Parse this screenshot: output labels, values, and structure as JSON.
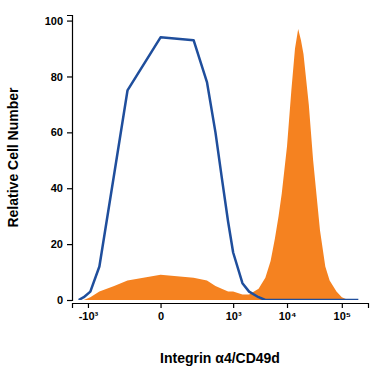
{
  "chart_data": {
    "type": "line",
    "x_label": "Integrin α4/CD49d",
    "y_label": "Relative Cell Number",
    "log": "x",
    "x": [
      -1500,
      -1200,
      -900,
      -600,
      -300,
      -150,
      0,
      150,
      300,
      450,
      600,
      800,
      1000,
      1500,
      2000,
      3000,
      4000,
      5000,
      6000,
      7000,
      8000,
      10000,
      12000,
      14000,
      16000,
      18000,
      20000,
      25000,
      30000,
      40000,
      50000,
      60000,
      80000,
      100000,
      130000,
      200000
    ],
    "series": [
      {
        "type": "area",
        "color": "#f58220",
        "values": [
          0,
          0,
          1,
          3,
          5,
          7,
          9,
          8,
          7,
          5,
          4,
          3,
          3,
          2,
          2,
          4,
          8,
          14,
          22,
          30,
          38,
          55,
          75,
          90,
          97,
          93,
          88,
          70,
          50,
          25,
          12,
          7,
          3,
          1,
          0,
          0
        ]
      },
      {
        "type": "line",
        "color": "#1f4e9c",
        "values": [
          0,
          1,
          3,
          12,
          45,
          75,
          94,
          93,
          78,
          60,
          44,
          28,
          17,
          6,
          3,
          1,
          0,
          0,
          0,
          0,
          0,
          0,
          0,
          0,
          0,
          0,
          0,
          0,
          0,
          0,
          0,
          0,
          0,
          0,
          0,
          0
        ]
      }
    ],
    "xlim": [
      -2000,
      300000
    ],
    "xticks": [
      {
        "value": -1000,
        "label": "-10³"
      },
      0,
      {
        "value": 1000,
        "label": "10³"
      },
      {
        "value": 10000,
        "label": "10⁴"
      },
      {
        "value": 100000,
        "label": "10⁵"
      }
    ],
    "ylim": [
      0,
      102
    ],
    "yticks": [
      0,
      20,
      40,
      60,
      80,
      100
    ]
  }
}
